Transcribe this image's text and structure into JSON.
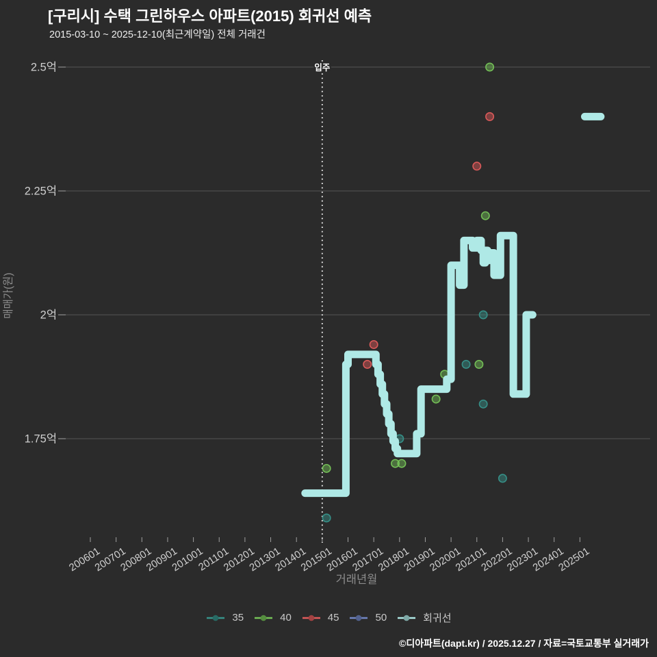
{
  "page": {
    "title": "[구리시] 수택 그린하우스 아파트(2015) 회귀선 예측",
    "subtitle": "2015-03-10 ~ 2025-12-10(최근계약일) 전체 거래건",
    "footer_credit": "©디아파트(dapt.kr) / 2025.12.27 / 자료=국토교통부 실거래가"
  },
  "colors": {
    "background": "#2b2b2b",
    "title_text": "#ffffff",
    "subtitle_text": "#ededed",
    "tick_text": "#cfcfcf",
    "axis_title_text": "#8d8d8d",
    "gridline": "#565656",
    "tick_mark": "#a0a0a0",
    "annotation_line": "#e3e3e3",
    "annotation_text": "#ffffff",
    "series_35": "#37948b",
    "series_40": "#76c458",
    "series_45": "#e25c5c",
    "series_50": "#7287c5",
    "regression": "#afe9e6"
  },
  "legend": {
    "position": "bottom-center",
    "items": [
      {
        "id": "35",
        "label": "35",
        "color_key": "series_35"
      },
      {
        "id": "40",
        "label": "40",
        "color_key": "series_40"
      },
      {
        "id": "45",
        "label": "45",
        "color_key": "series_45"
      },
      {
        "id": "50",
        "label": "50",
        "color_key": "series_50"
      },
      {
        "id": "regression",
        "label": "회귀선",
        "color_key": "regression"
      }
    ]
  },
  "chart_data": {
    "type": "line",
    "title": "[구리시] 수택 그린하우스 아파트(2015) 회귀선 예측",
    "subtitle": "2015-03-10 ~ 2025-12-10(최근계약일) 전체 거래건",
    "xlabel": "거래년월",
    "ylabel": "매매가(원)",
    "y_unit": "억",
    "grid": true,
    "legend_position": "bottom",
    "xlim": [
      "200501",
      "202710"
    ],
    "ylim": [
      1.54,
      2.51
    ],
    "x_ticks": [
      "200601",
      "200701",
      "200801",
      "200901",
      "201001",
      "201101",
      "201201",
      "201301",
      "201401",
      "201501",
      "201601",
      "201701",
      "201801",
      "201901",
      "202001",
      "202101",
      "202201",
      "202301",
      "202401",
      "202501"
    ],
    "y_ticks": [
      {
        "value": 2.5,
        "label": "2.5억"
      },
      {
        "value": 2.25,
        "label": "2.25억"
      },
      {
        "value": 2.0,
        "label": "2억"
      },
      {
        "value": 1.75,
        "label": "1.75억"
      }
    ],
    "annotation": {
      "label": "입주",
      "x": "201501"
    },
    "scatter_series": [
      {
        "name": "35",
        "color_key": "series_35",
        "points": [
          [
            "201503",
            1.59
          ],
          [
            "201801",
            1.75
          ],
          [
            "202008",
            1.9
          ],
          [
            "202104",
            2.0
          ],
          [
            "202104",
            1.82
          ],
          [
            "202201",
            1.67
          ]
        ]
      },
      {
        "name": "40",
        "color_key": "series_40",
        "points": [
          [
            "201503",
            1.69
          ],
          [
            "201711",
            1.7
          ],
          [
            "201802",
            1.7
          ],
          [
            "201906",
            1.83
          ],
          [
            "201910",
            1.88
          ],
          [
            "202102",
            1.9
          ],
          [
            "202105",
            2.2
          ],
          [
            "202107",
            2.5
          ]
        ]
      },
      {
        "name": "45",
        "color_key": "series_45",
        "points": [
          [
            "201610",
            1.9
          ],
          [
            "201701",
            1.94
          ],
          [
            "202101",
            2.3
          ],
          [
            "202107",
            2.4
          ]
        ]
      },
      {
        "name": "50",
        "color_key": "series_50",
        "points": []
      }
    ],
    "regression_line": {
      "name": "회귀선",
      "color_key": "regression",
      "interpolation": "step-after",
      "points": [
        [
          "201405",
          1.64
        ],
        [
          "201512",
          1.64
        ],
        [
          "201512",
          1.9
        ],
        [
          "201601",
          1.92
        ],
        [
          "201701",
          1.92
        ],
        [
          "201702",
          1.9
        ],
        [
          "201703",
          1.88
        ],
        [
          "201704",
          1.86
        ],
        [
          "201705",
          1.84
        ],
        [
          "201706",
          1.82
        ],
        [
          "201707",
          1.8
        ],
        [
          "201708",
          1.78
        ],
        [
          "201709",
          1.76
        ],
        [
          "201710",
          1.745
        ],
        [
          "201711",
          1.73
        ],
        [
          "201712",
          1.72
        ],
        [
          "201808",
          1.72
        ],
        [
          "201809",
          1.76
        ],
        [
          "201811",
          1.85
        ],
        [
          "201911",
          1.87
        ],
        [
          "202001",
          2.1
        ],
        [
          "202005",
          2.06
        ],
        [
          "202007",
          2.15
        ],
        [
          "202011",
          2.135
        ],
        [
          "202101",
          2.15
        ],
        [
          "202103",
          2.13
        ],
        [
          "202104",
          2.105
        ],
        [
          "202105",
          2.13
        ],
        [
          "202106",
          2.11
        ],
        [
          "202107",
          2.125
        ],
        [
          "202109",
          2.08
        ],
        [
          "202112",
          2.16
        ],
        [
          "202206",
          1.84
        ],
        [
          "202212",
          2.0
        ],
        [
          "202303",
          2.0
        ]
      ]
    },
    "forecast_segment": {
      "name": "회귀선 예측",
      "color_key": "regression",
      "points": [
        [
          "202502",
          2.4
        ],
        [
          "202512",
          2.4
        ]
      ]
    }
  }
}
